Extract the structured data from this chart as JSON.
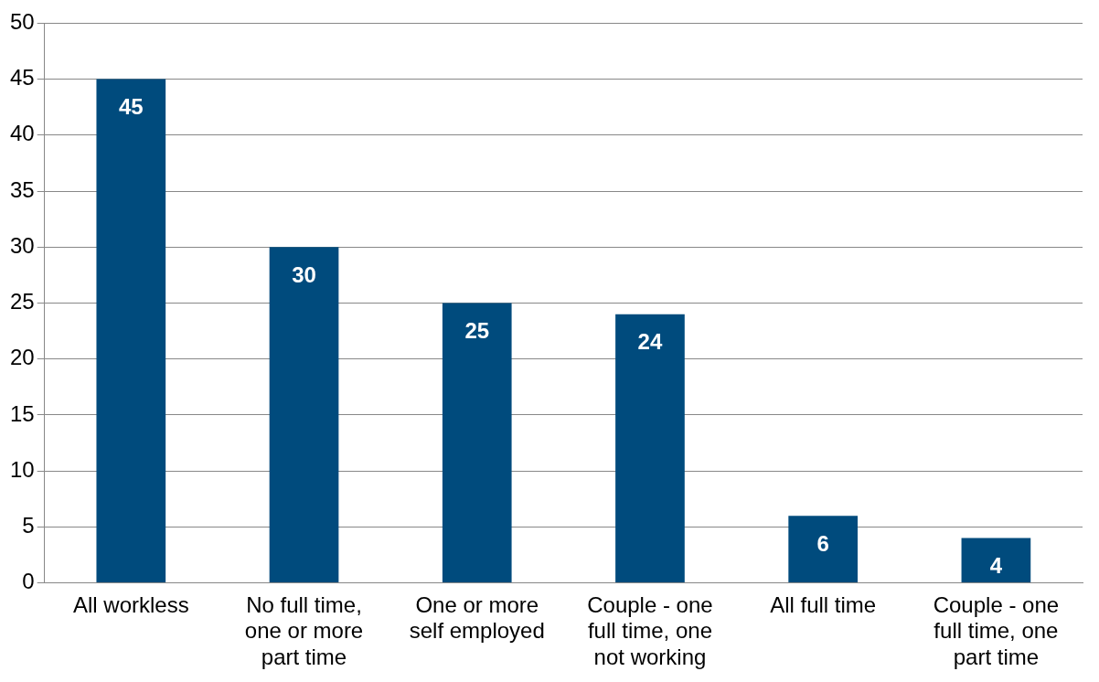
{
  "chart_data": {
    "type": "bar",
    "categories": [
      "All workless",
      "No full time, one or more part time",
      "One or more self employed",
      "Couple - one full time, one not working",
      "All full time",
      "Couple - one full time, one part time"
    ],
    "values": [
      45,
      30,
      25,
      24,
      6,
      4
    ],
    "color": "#004b7d",
    "ylim": [
      0,
      50
    ],
    "yticks": [
      0,
      5,
      10,
      15,
      20,
      25,
      30,
      35,
      40,
      45,
      50
    ],
    "grid": "y",
    "legend": false,
    "data_labels": true
  }
}
